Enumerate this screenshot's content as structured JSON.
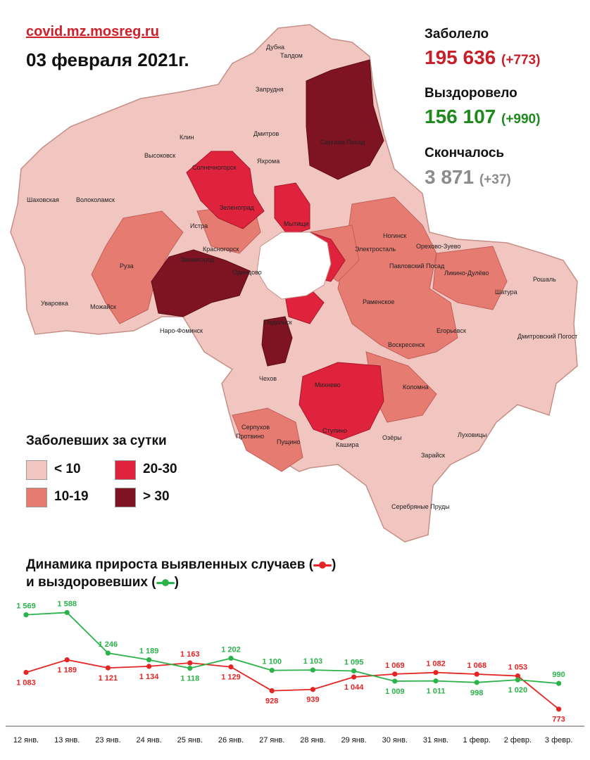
{
  "header": {
    "source": "covid.mz.mosreg.ru",
    "date": "03 февраля 2021г."
  },
  "stats": {
    "infected": {
      "label": "Заболело",
      "value": "195 636",
      "delta": "(+773)",
      "color": "#c81e28"
    },
    "recovered": {
      "label": "Выздоровело",
      "value": "156 107",
      "delta": "(+990)",
      "color": "#1e8a1e"
    },
    "died": {
      "label": "Скончалось",
      "value": "3 871",
      "delta": "(+37)",
      "color": "#8c8c8c"
    }
  },
  "map": {
    "cities": [
      "Дубна",
      "Талдом",
      "Запрудня",
      "Клин",
      "Дмитров",
      "Сергиев Посад",
      "Высоковск",
      "Солнечногорск",
      "Яхрома",
      "Шаховская",
      "Волоколамск",
      "Зеленоград",
      "Мытищи",
      "Истра",
      "Красногорск",
      "Ногинск",
      "Электросталь",
      "Орехово-Зуево",
      "Павловский Посад",
      "Руза",
      "Звенигород",
      "Одинцово",
      "Ликино-Дулёво",
      "Рошаль",
      "Уваровка",
      "Можайск",
      "Раменское",
      "Шатура",
      "Наро-Фоминск",
      "Подольск",
      "Егорьевск",
      "Дмитровский Погост",
      "Воскресенск",
      "Чехов",
      "Михнево",
      "Коломна",
      "Серпухов",
      "Ступино",
      "Луховицы",
      "Протвино",
      "Пущино",
      "Озёры",
      "Кашира",
      "Зарайск",
      "Серебряные Пруды"
    ]
  },
  "legend": {
    "title": "Заболевших за сутки",
    "items": [
      {
        "label": "< 10",
        "color": "#f2c6c0"
      },
      {
        "label": "10-19",
        "color": "#e67b72"
      },
      {
        "label": "20-30",
        "color": "#e0233d"
      },
      {
        "label": "> 30",
        "color": "#7e1322"
      }
    ]
  },
  "chart_title": {
    "line1": "Динамика прироста выявленных случаев (",
    "line1_end": ")",
    "line2": "и выздоровевших (",
    "line2_end": ")"
  },
  "chart_data": {
    "type": "line",
    "x": [
      "12 янв.",
      "13 янв.",
      "23 янв.",
      "24 янв.",
      "25 янв.",
      "26 янв.",
      "27 янв.",
      "28 янв.",
      "29 янв.",
      "30 янв.",
      "31 янв.",
      "1 февр.",
      "2 февр.",
      "3 февр."
    ],
    "series": [
      {
        "color": "#e52424",
        "values": [
          1083,
          1189,
          1121,
          1134,
          1163,
          1129,
          928,
          939,
          1044,
          1069,
          1082,
          1068,
          1053,
          773
        ],
        "labels": [
          "1 083",
          "1 189",
          "1 121",
          "1 134",
          "1 163",
          "1 129",
          "928",
          "939",
          "1 044",
          "1 069",
          "1 082",
          "1 068",
          "1 053",
          "773"
        ]
      },
      {
        "color": "#2bb34a",
        "values": [
          1569,
          1588,
          1246,
          1189,
          1118,
          1202,
          1100,
          1103,
          1095,
          1009,
          1011,
          998,
          1020,
          990
        ],
        "labels": [
          "1 569",
          "1 588",
          "1 246",
          "1 189",
          "1 118",
          "1 202",
          "1 100",
          "1 103",
          "1 095",
          "1 009",
          "1 011",
          "998",
          "1 020",
          "990"
        ]
      }
    ]
  }
}
